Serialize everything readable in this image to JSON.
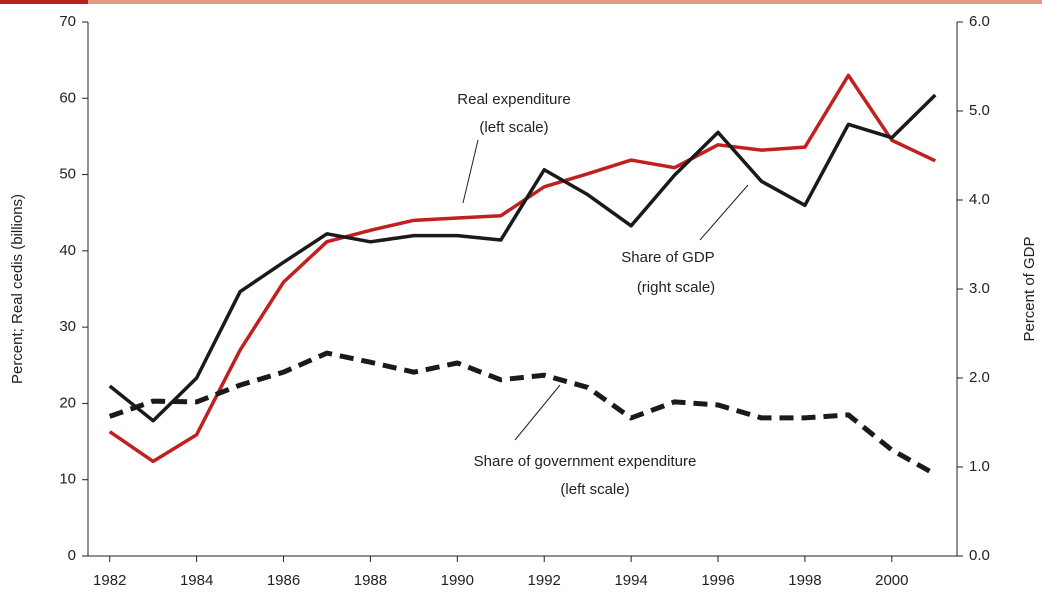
{
  "chart_data": {
    "type": "line",
    "ylabel": "Percent; Real cedis (billions)",
    "y2label": "Percent of GDP",
    "x": [
      1982,
      1983,
      1984,
      1985,
      1986,
      1987,
      1988,
      1989,
      1990,
      1991,
      1992,
      1993,
      1994,
      1995,
      1996,
      1997,
      1998,
      1999,
      2000,
      2001
    ],
    "xlim": [
      1981.5,
      2001.5
    ],
    "xticks": [
      1982,
      1984,
      1986,
      1988,
      1990,
      1992,
      1994,
      1996,
      1998,
      2000
    ],
    "ylim": [
      0,
      70
    ],
    "yticks": [
      0,
      10,
      20,
      30,
      40,
      50,
      60,
      70
    ],
    "y2lim": [
      0,
      6
    ],
    "y2ticks": [
      {
        "value": 0,
        "label": "0.0"
      },
      {
        "value": 1,
        "label": "1.0"
      },
      {
        "value": 2,
        "label": "2.0"
      },
      {
        "value": 3,
        "label": "3.0"
      },
      {
        "value": 4,
        "label": "4.0"
      },
      {
        "value": 5,
        "label": "5.0"
      },
      {
        "value": 6,
        "label": "6.0"
      }
    ],
    "series": [
      {
        "name": "Real expenditure",
        "color": "#c0201e",
        "axis": "y",
        "dashed": false,
        "values": [
          16.3,
          12.4,
          15.9,
          27.0,
          35.9,
          41.2,
          42.7,
          44.0,
          44.3,
          44.6,
          48.4,
          50.1,
          51.9,
          50.9,
          53.9,
          53.2,
          53.6,
          63.0,
          54.5,
          51.8
        ]
      },
      {
        "name": "Share of GDP",
        "color": "#1a1a1a",
        "axis": "y2",
        "dashed": false,
        "values": [
          1.91,
          1.52,
          2.0,
          2.97,
          3.3,
          3.62,
          3.53,
          3.6,
          3.6,
          3.55,
          4.34,
          4.06,
          3.71,
          4.28,
          4.76,
          4.21,
          3.94,
          4.85,
          4.7,
          5.18
        ]
      },
      {
        "name": "Share of government expenditure",
        "color": "#1a1a1a",
        "axis": "y",
        "dashed": true,
        "values": [
          18.3,
          20.3,
          20.2,
          22.4,
          24.1,
          26.6,
          25.4,
          24.1,
          25.3,
          23.1,
          23.7,
          22.1,
          18.1,
          20.2,
          19.8,
          18.1,
          18.1,
          18.5,
          13.9,
          10.7
        ]
      }
    ],
    "annotations": [
      "(left scale)",
      "(right scale)",
      "(left scale)"
    ]
  }
}
